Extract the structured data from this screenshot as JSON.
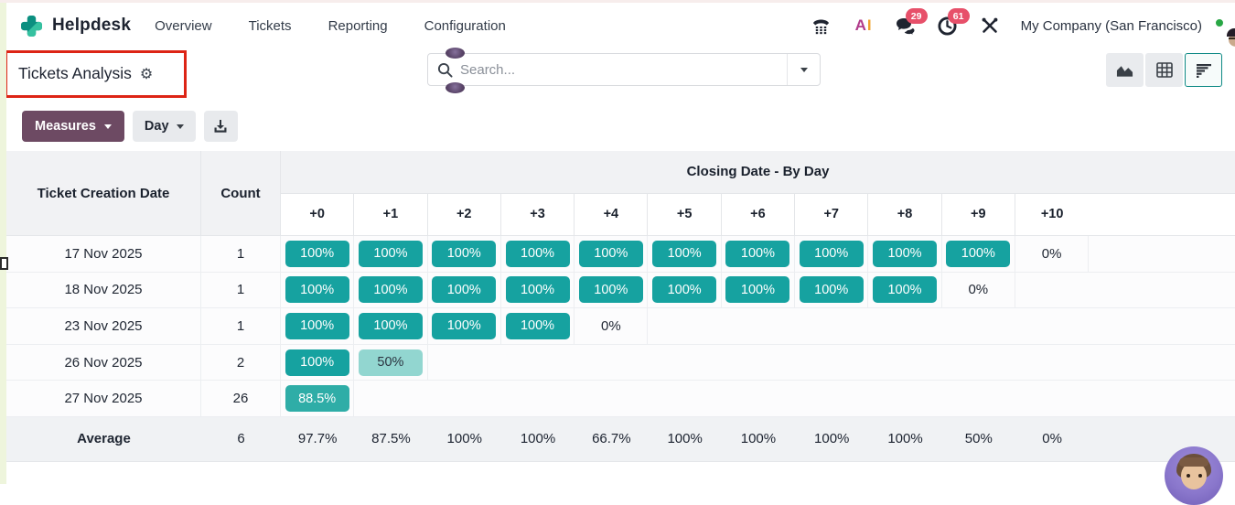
{
  "nav": {
    "app": "Helpdesk",
    "items": [
      "Overview",
      "Tickets",
      "Reporting",
      "Configuration"
    ],
    "ai_a": "A",
    "ai_i": "I",
    "messages_badge": "29",
    "activities_badge": "61",
    "company": "My Company (San Francisco)"
  },
  "control": {
    "title": "Tickets Analysis",
    "gear": "⚙",
    "search_placeholder": "Search..."
  },
  "toolbar": {
    "measures": "Measures",
    "interval": "Day"
  },
  "table": {
    "row_header": "Ticket Creation Date",
    "count_header": "Count",
    "group_header": "Closing Date - By Day",
    "day_cols": [
      "+0",
      "+1",
      "+2",
      "+3",
      "+4",
      "+5",
      "+6",
      "+7",
      "+8",
      "+9",
      "+10"
    ],
    "rows": [
      {
        "date": "17 Nov 2025",
        "count": "1",
        "cells": [
          {
            "v": "100%",
            "t": "full"
          },
          {
            "v": "100%",
            "t": "full"
          },
          {
            "v": "100%",
            "t": "full"
          },
          {
            "v": "100%",
            "t": "full"
          },
          {
            "v": "100%",
            "t": "full"
          },
          {
            "v": "100%",
            "t": "full"
          },
          {
            "v": "100%",
            "t": "full"
          },
          {
            "v": "100%",
            "t": "full"
          },
          {
            "v": "100%",
            "t": "full"
          },
          {
            "v": "100%",
            "t": "full"
          },
          {
            "v": "0%",
            "t": "zero"
          }
        ]
      },
      {
        "date": "18 Nov 2025",
        "count": "1",
        "cells": [
          {
            "v": "100%",
            "t": "full"
          },
          {
            "v": "100%",
            "t": "full"
          },
          {
            "v": "100%",
            "t": "full"
          },
          {
            "v": "100%",
            "t": "full"
          },
          {
            "v": "100%",
            "t": "full"
          },
          {
            "v": "100%",
            "t": "full"
          },
          {
            "v": "100%",
            "t": "full"
          },
          {
            "v": "100%",
            "t": "full"
          },
          {
            "v": "100%",
            "t": "full"
          },
          {
            "v": "0%",
            "t": "zero"
          },
          {
            "v": "",
            "t": "empty"
          }
        ]
      },
      {
        "date": "23 Nov 2025",
        "count": "1",
        "cells": [
          {
            "v": "100%",
            "t": "full"
          },
          {
            "v": "100%",
            "t": "full"
          },
          {
            "v": "100%",
            "t": "full"
          },
          {
            "v": "100%",
            "t": "full"
          },
          {
            "v": "0%",
            "t": "zero"
          },
          {
            "v": "",
            "t": "empty"
          },
          {
            "v": "",
            "t": "empty"
          },
          {
            "v": "",
            "t": "empty"
          },
          {
            "v": "",
            "t": "empty"
          },
          {
            "v": "",
            "t": "empty"
          },
          {
            "v": "",
            "t": "empty"
          }
        ]
      },
      {
        "date": "26 Nov 2025",
        "count": "2",
        "cells": [
          {
            "v": "100%",
            "t": "full"
          },
          {
            "v": "50%",
            "t": "mid"
          },
          {
            "v": "",
            "t": "empty"
          },
          {
            "v": "",
            "t": "empty"
          },
          {
            "v": "",
            "t": "empty"
          },
          {
            "v": "",
            "t": "empty"
          },
          {
            "v": "",
            "t": "empty"
          },
          {
            "v": "",
            "t": "empty"
          },
          {
            "v": "",
            "t": "empty"
          },
          {
            "v": "",
            "t": "empty"
          },
          {
            "v": "",
            "t": "empty"
          }
        ]
      },
      {
        "date": "27 Nov 2025",
        "count": "26",
        "cells": [
          {
            "v": "88.5%",
            "t": "high"
          },
          {
            "v": "",
            "t": "empty"
          },
          {
            "v": "",
            "t": "empty"
          },
          {
            "v": "",
            "t": "empty"
          },
          {
            "v": "",
            "t": "empty"
          },
          {
            "v": "",
            "t": "empty"
          },
          {
            "v": "",
            "t": "empty"
          },
          {
            "v": "",
            "t": "empty"
          },
          {
            "v": "",
            "t": "empty"
          },
          {
            "v": "",
            "t": "empty"
          },
          {
            "v": "",
            "t": "empty"
          }
        ]
      }
    ],
    "average": {
      "label": "Average",
      "count": "6",
      "values": [
        "97.7%",
        "87.5%",
        "100%",
        "100%",
        "66.7%",
        "100%",
        "100%",
        "100%",
        "100%",
        "50%",
        "0%"
      ]
    }
  },
  "colors": {
    "badge_full": "#16a2a0",
    "badge_high": "#2fada7",
    "badge_mid": "#92d6d0",
    "accent_teal": "#0e8a85",
    "primary_purple": "#6d4a63",
    "annotation_red": "#dd2415",
    "notification_red": "#e7506a"
  }
}
